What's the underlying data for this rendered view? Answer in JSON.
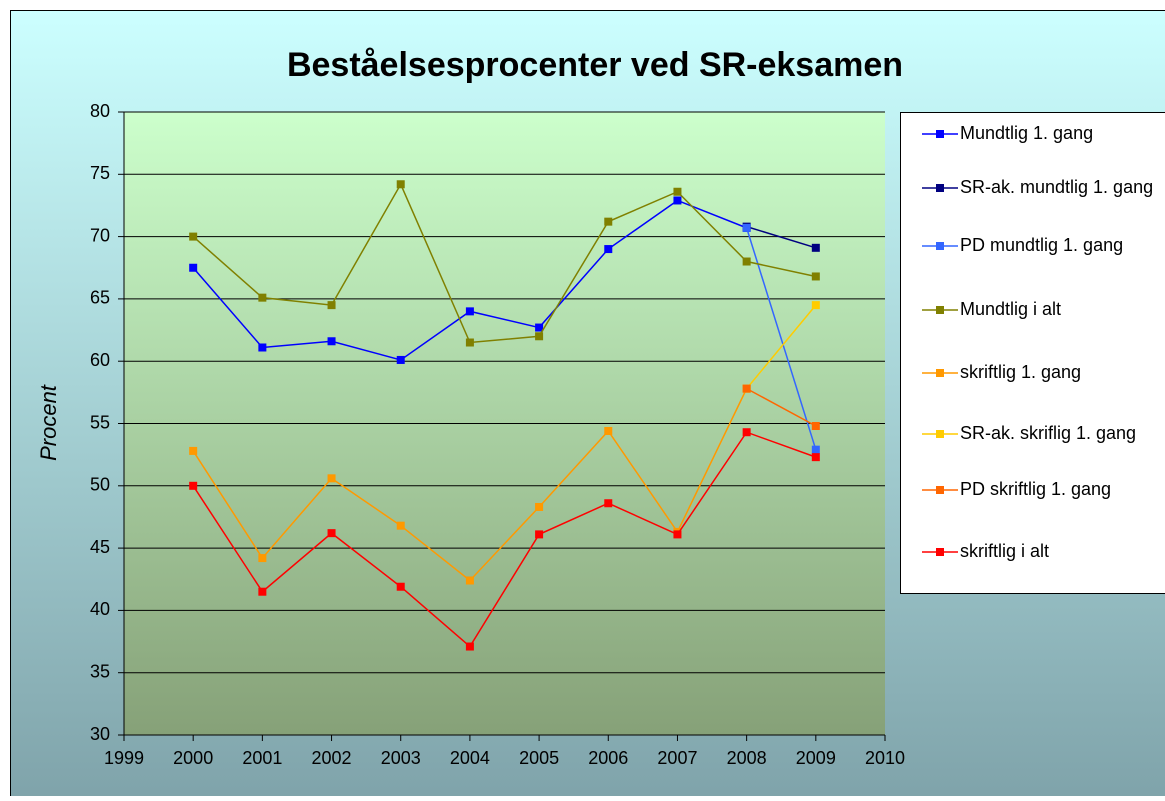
{
  "chart_data": {
    "type": "line",
    "title": "Beståelsesprocenter ved SR-eksamen",
    "y_label": "Procent",
    "x": [
      2000,
      2001,
      2002,
      2003,
      2004,
      2005,
      2006,
      2007,
      2008,
      2009
    ],
    "xlim": [
      1999,
      2010
    ],
    "xticks": [
      1999,
      2000,
      2001,
      2002,
      2003,
      2004,
      2005,
      2006,
      2007,
      2008,
      2009,
      2010
    ],
    "ylim": [
      30,
      80
    ],
    "yticks": [
      30,
      35,
      40,
      45,
      50,
      55,
      60,
      65,
      70,
      75,
      80
    ],
    "grid": true,
    "legend": "right",
    "series": [
      {
        "name": "Mundtlig 1. gang",
        "color": "#0000ff",
        "values": [
          67.5,
          61.1,
          61.6,
          60.1,
          64.0,
          62.7,
          69.0,
          72.9,
          70.7,
          null
        ]
      },
      {
        "name": "SR-ak. mundtlig 1. gang",
        "color": "#000080",
        "values": [
          null,
          null,
          null,
          null,
          null,
          null,
          null,
          null,
          70.8,
          69.1
        ]
      },
      {
        "name": "PD mundtlig 1. gang",
        "color": "#3366ff",
        "values": [
          null,
          null,
          null,
          null,
          null,
          null,
          null,
          null,
          70.7,
          52.9
        ]
      },
      {
        "name": "Mundtlig i alt",
        "color": "#808000",
        "values": [
          70.0,
          65.1,
          64.5,
          74.2,
          61.5,
          62.0,
          71.2,
          73.6,
          68.0,
          66.8
        ]
      },
      {
        "name": "skriftlig 1. gang",
        "color": "#ff9900",
        "values": [
          52.8,
          44.2,
          50.6,
          46.8,
          42.4,
          48.3,
          54.4,
          46.3,
          57.8,
          null
        ]
      },
      {
        "name": "SR-ak. skriflig 1. gang",
        "color": "#ffcc00",
        "values": [
          null,
          null,
          null,
          null,
          null,
          null,
          null,
          null,
          57.8,
          64.5
        ]
      },
      {
        "name": "PD skriftlig 1. gang",
        "color": "#ff6600",
        "values": [
          null,
          null,
          null,
          null,
          null,
          null,
          null,
          null,
          57.8,
          54.8
        ]
      },
      {
        "name": "skriftlig i alt",
        "color": "#ff0000",
        "values": [
          50.0,
          41.5,
          46.2,
          41.9,
          37.1,
          46.1,
          48.6,
          46.1,
          54.3,
          52.3
        ]
      }
    ]
  }
}
